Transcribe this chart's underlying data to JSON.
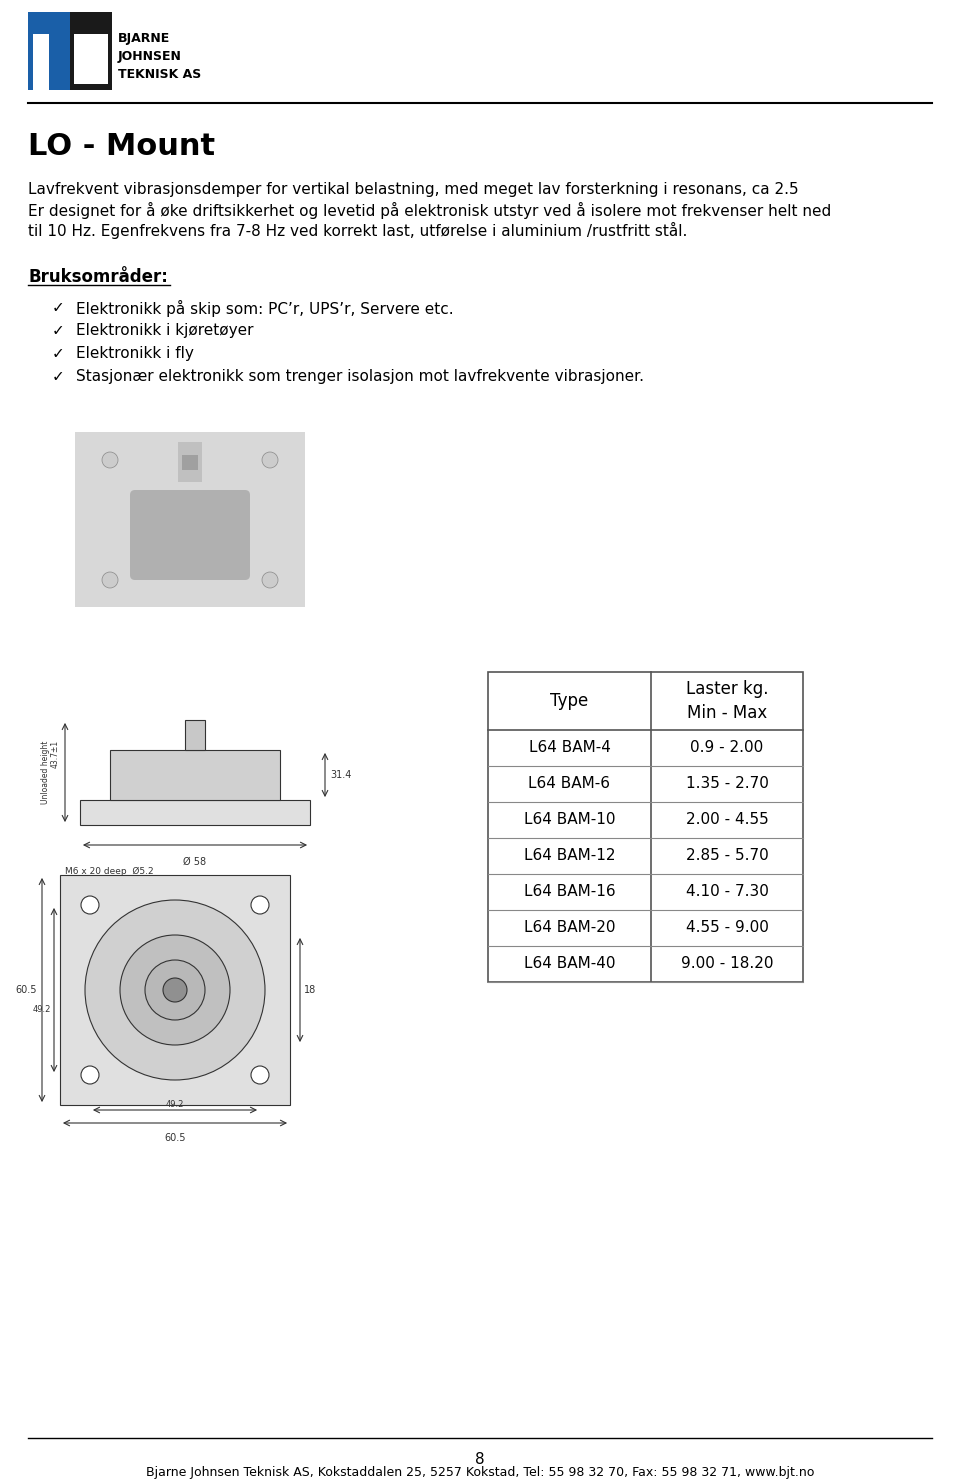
{
  "bg_color": "#ffffff",
  "logo_text_line1": "BJARNE",
  "logo_text_line2": "JOHNSEN",
  "logo_text_line3": "TEKNISK AS",
  "title": "LO - Mount",
  "paragraph1": "Lavfrekvent vibrasjonsdemper for vertikal belastning, med meget lav forsterkning i resonans, ca 2.5",
  "paragraph2": "Er designet for å øke driftsikkerhet og levetid på elektronisk utstyr ved å isolere mot frekvenser helt ned",
  "paragraph3": "til 10 Hz. Egenfrekvens fra 7-8 Hz ved korrekt last, utførelse i aluminium /rustfritt stål.",
  "bruksomrader_label": "Bruksområder:",
  "bullet_items": [
    "Elektronikk på skip som: PC’r, UPS’r, Servere etc.",
    "Elektronikk i kjøretøyer",
    "Elektronikk i fly",
    "Stasjonær elektronikk som trenger isolasjon mot lavfrekvente vibrasjoner."
  ],
  "table_header_col1": "Type",
  "table_header_col2": "Laster kg.\nMin - Max",
  "table_rows": [
    [
      "L64 BAM-4",
      "0.9 - 2.00"
    ],
    [
      "L64 BAM-6",
      "1.35 - 2.70"
    ],
    [
      "L64 BAM-10",
      "2.00 - 4.55"
    ],
    [
      "L64 BAM-12",
      "2.85 - 5.70"
    ],
    [
      "L64 BAM-16",
      "4.10 - 7.30"
    ],
    [
      "L64 BAM-20",
      "4.55 - 9.00"
    ],
    [
      "L64 BAM-40",
      "9.00 - 18.20"
    ]
  ],
  "footer_text": "Bjarne Johnsen Teknisk AS, Kokstaddalen 25, 5257 Kokstad, Tel: 55 98 32 70, Fax: 55 98 32 71, www.bjt.no",
  "page_number": "8",
  "logo_blue": "#1a5fa8",
  "logo_dark": "#1a1a1a",
  "table_border_color": "#555555",
  "table_row_line_color": "#888888"
}
